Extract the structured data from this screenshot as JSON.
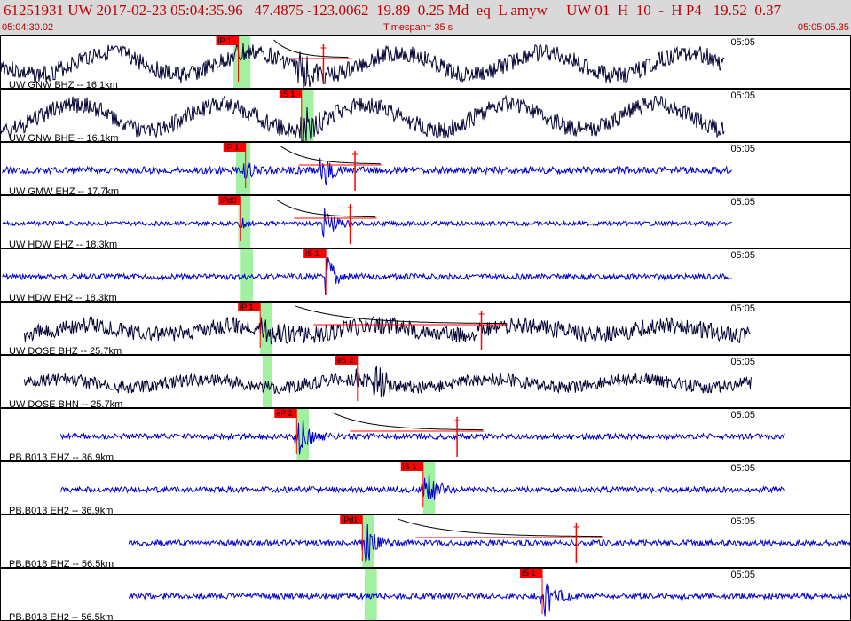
{
  "header": {
    "title": "61251931 UW 2017-02-23 05:04:35.96   47.4875 -123.0062  19.89  0.25 Md  eq  L amyw     UW 01  H  10  -  H P4   19.52  0.37",
    "start_time": "05:04:30.02",
    "timespan": "Timespan=  35 s",
    "end_time": "05:05:05.35"
  },
  "colors": {
    "title": "#c00000",
    "header_bg": "#d9d9d9",
    "trace_broadband": "#000033",
    "trace_short_period": "#0000cc",
    "pick_box": "#ff0000",
    "pick_window": "#90ee90"
  },
  "chart_data": {
    "type": "line",
    "title": "61251931 UW 2017-02-23 05:04:35.96",
    "x_range_s": [
      0,
      35
    ],
    "minute_label": "05:05",
    "minute_mark_s": 29.98,
    "panels": [
      {
        "label": "UW GNW BHZ -- 16.1km",
        "color": "dark",
        "amp": 12,
        "lowfreq": 14,
        "data_start_s": 0.0,
        "data_end_s": 29.8,
        "pick": "iP 1",
        "pick_s": 9.8,
        "window_s": [
          9.6,
          10.3
        ],
        "spike_s": 13.3,
        "burst_s": 12.4,
        "coda": true
      },
      {
        "label": "UW GNW BHE -- 16.1km",
        "color": "dark",
        "amp": 12,
        "lowfreq": 16,
        "data_start_s": 0.0,
        "data_end_s": 29.8,
        "pick": "iS 1",
        "pick_s": 12.4,
        "window_s": [
          12.4,
          12.9
        ],
        "burst_s": 12.5
      },
      {
        "label": "UW GMW EHZ -- 17.7km",
        "color": "blue",
        "amp": 5,
        "lowfreq": 0,
        "data_start_s": 0.1,
        "data_end_s": 30.1,
        "pick": "iP 1",
        "pick_s": 10.1,
        "window_s": [
          9.7,
          10.3
        ],
        "spike_s": 14.6,
        "burst_s": 13.3,
        "coda": true
      },
      {
        "label": "UW HDW EHZ -- 18.3km",
        "color": "blue",
        "amp": 3,
        "lowfreq": 0,
        "data_start_s": 0.1,
        "data_end_s": 30.1,
        "pick": "iPd0",
        "pick_s": 9.9,
        "window_s": [
          9.8,
          10.3
        ],
        "spike_s": 14.4,
        "burst_s": 13.4,
        "coda": true
      },
      {
        "label": "UW HDW EH2 -- 18.3km",
        "color": "blue",
        "amp": 4,
        "lowfreq": 0,
        "data_start_s": 0.1,
        "data_end_s": 30.1,
        "pick": "iS 1",
        "pick_s": 13.4,
        "window_s": [
          9.9,
          10.4
        ],
        "burst_s": 13.5
      },
      {
        "label": "UW DOSE BHZ -- 25.7km",
        "color": "dark",
        "amp": 12,
        "lowfreq": 6,
        "data_start_s": 1.0,
        "data_end_s": 30.9,
        "pick": "iP 1",
        "pick_s": 10.7,
        "window_s": [
          10.7,
          11.2
        ],
        "spike_s": 19.8,
        "burst_s": 11.0,
        "coda": true
      },
      {
        "label": "UW DOSE BHN -- 25.7km",
        "color": "dark",
        "amp": 9,
        "lowfreq": 5,
        "data_start_s": 1.0,
        "data_end_s": 30.9,
        "pick": "eS 2",
        "pick_s": 14.7,
        "window_s": [
          10.8,
          11.2
        ],
        "burst_s": 15.5
      },
      {
        "label": "PB,B013 EHZ -- 36.9km",
        "color": "blue",
        "amp": 4,
        "lowfreq": 0,
        "data_start_s": 2.5,
        "data_end_s": 32.3,
        "pick": "eP 2",
        "pick_s": 12.2,
        "window_s": [
          12.2,
          12.7
        ],
        "spike_s": 18.8,
        "burst_s": 12.4,
        "coda": true
      },
      {
        "label": "PB,B013 EH2 -- 36.9km",
        "color": "blue",
        "amp": 4,
        "lowfreq": 0,
        "data_start_s": 2.5,
        "data_end_s": 32.3,
        "pick": "iS 1",
        "pick_s": 17.4,
        "window_s": [
          17.4,
          17.9
        ],
        "burst_s": 17.6
      },
      {
        "label": "PB,B018 EHZ -- 56.5km",
        "color": "blue",
        "amp": 4,
        "lowfreq": 0,
        "data_start_s": 5.3,
        "data_end_s": 35.0,
        "pick": "iPd1",
        "pick_s": 14.9,
        "window_s": [
          14.9,
          15.4
        ],
        "spike_s": 23.7,
        "burst_s": 15.1,
        "coda": true
      },
      {
        "label": "PB,B018 EH2 -- 56.5km",
        "color": "blue",
        "amp": 4,
        "lowfreq": 0,
        "data_start_s": 5.3,
        "data_end_s": 35.0,
        "pick": "iS 1",
        "pick_s": 22.3,
        "window_s": [
          15.0,
          15.5
        ],
        "burst_s": 22.5
      }
    ]
  }
}
